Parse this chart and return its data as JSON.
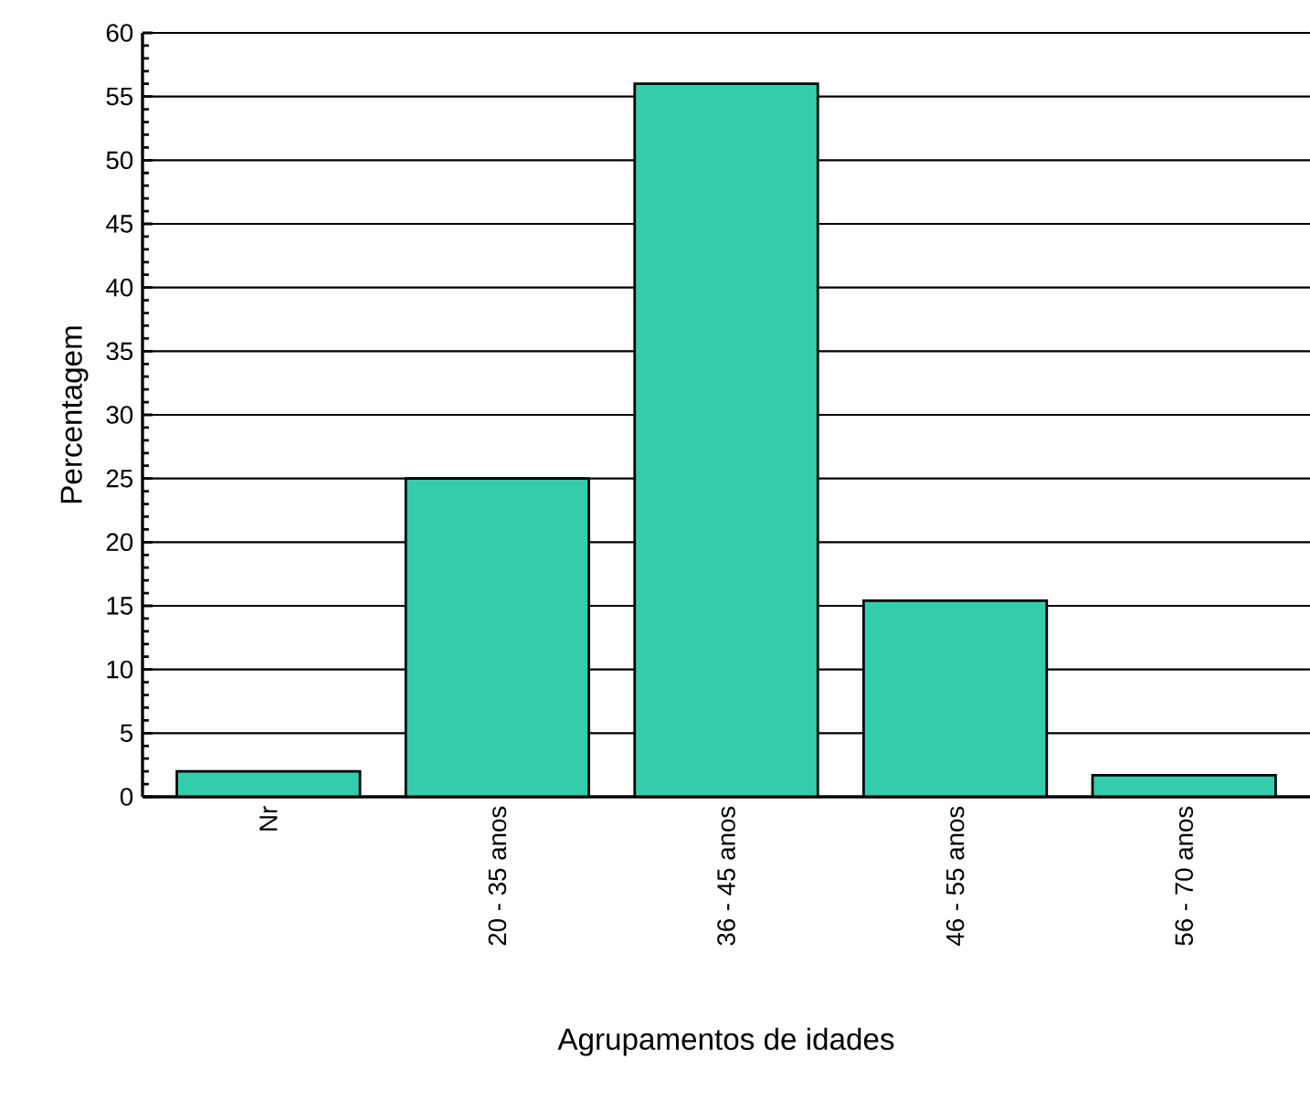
{
  "chart_data": {
    "type": "bar",
    "xlabel": "Agrupamentos de idades",
    "ylabel": "Percentagem",
    "categories": [
      "Nr",
      "20 - 35 anos",
      "36 - 45 anos",
      "46 - 55 anos",
      "56 - 70 anos"
    ],
    "values": [
      2,
      25,
      56,
      15.4,
      1.7
    ],
    "color": "#33cdac",
    "ylim": [
      0,
      60
    ],
    "yticks": [
      0,
      5,
      10,
      15,
      20,
      25,
      30,
      35,
      40,
      45,
      50,
      55,
      60
    ],
    "grid": "y"
  }
}
